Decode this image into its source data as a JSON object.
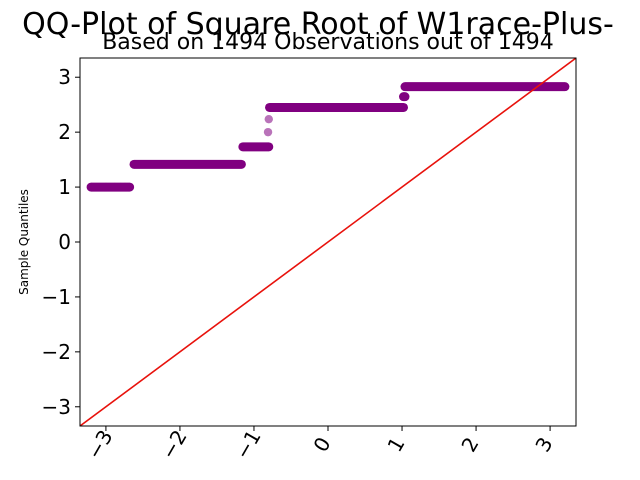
{
  "chart_data": {
    "type": "scatter",
    "title": "QQ-Plot of Square Root of W1race-Plus-",
    "subtitle": "Based on 1494 Observations out of 1494",
    "xlabel": "",
    "ylabel": "Sample Quantiles",
    "xlim": [
      -3.35,
      3.35
    ],
    "ylim": [
      -3.35,
      3.35
    ],
    "xticks": [
      -3,
      -2,
      -1,
      0,
      1,
      2,
      3
    ],
    "yticks": [
      -3,
      -2,
      -1,
      0,
      1,
      2,
      3
    ],
    "xtick_labels": [
      "−3",
      "−2",
      "−1",
      "0",
      "1",
      "2",
      "3"
    ],
    "ytick_labels": [
      "−3",
      "−2",
      "−1",
      "0",
      "1",
      "2",
      "3"
    ],
    "grid": false,
    "legend": "none",
    "point_color": "#800080",
    "line_color": "#e8120c",
    "reference_line": {
      "slope": 1,
      "intercept": 0
    },
    "series": [
      {
        "levels": [
          {
            "y": 1.0,
            "x_start": -3.2,
            "x_end": -2.68,
            "points": [
              -3.2,
              -3.0,
              -2.88,
              -2.8,
              -2.74,
              -2.68
            ]
          },
          {
            "y": 1.414,
            "x_start": -2.62,
            "x_end": -1.17,
            "points": [
              -2.62,
              -2.58,
              -2.54
            ]
          },
          {
            "y": 1.732,
            "x_start": -1.15,
            "x_end": -0.8,
            "points": []
          },
          {
            "y": 2.0,
            "x_start": -0.81,
            "x_end": -0.81,
            "points": [
              -0.81
            ]
          },
          {
            "y": 2.236,
            "x_start": -0.8,
            "x_end": -0.8,
            "points": [
              -0.8
            ]
          },
          {
            "y": 2.449,
            "x_start": -0.79,
            "x_end": 1.02,
            "points": []
          },
          {
            "y": 2.646,
            "x_start": 1.02,
            "x_end": 1.04,
            "points": [
              1.02,
              1.04
            ]
          },
          {
            "y": 2.828,
            "x_start": 1.04,
            "x_end": 3.2,
            "points": [
              2.6,
              2.65,
              2.7,
              2.75,
              2.8,
              2.9,
              3.0,
              3.2
            ]
          }
        ]
      }
    ]
  }
}
